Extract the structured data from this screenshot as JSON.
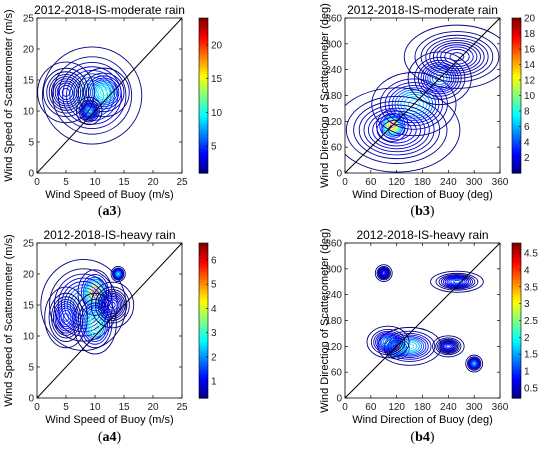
{
  "panels": [
    {
      "id": "a3",
      "caption": {
        "open": "(",
        "letter": "a3",
        "close": ")"
      },
      "chart_data": {
        "type": "heatmap",
        "title": "2012-2018-IS-moderate rain",
        "xlabel": "Wind Speed of Buoy (m/s)",
        "ylabel": "Wind Speed of Scatterometer (m/s)",
        "xlim": [
          0,
          25
        ],
        "ylim": [
          0,
          25
        ],
        "xticks": [
          0,
          5,
          10,
          15,
          20,
          25
        ],
        "yticks": [
          0,
          5,
          10,
          15,
          20,
          25
        ],
        "colorbar": {
          "min": 1,
          "max": 24,
          "ticks": [
            5,
            10,
            15,
            20
          ]
        },
        "reference_line": "y = x",
        "clusters": [
          {
            "x": 9.5,
            "y": 12.5,
            "sx": 3.5,
            "sy": 3.2,
            "amp": 10
          },
          {
            "x": 11.5,
            "y": 13,
            "sx": 1.8,
            "sy": 1.6,
            "amp": 11
          },
          {
            "x": 9,
            "y": 10,
            "sx": 0.9,
            "sy": 0.9,
            "amp": 8
          },
          {
            "x": 5,
            "y": 13,
            "sx": 2,
            "sy": 2,
            "amp": 3
          }
        ]
      }
    },
    {
      "id": "b3",
      "caption": {
        "open": "(",
        "letter": "b3",
        "close": ")"
      },
      "chart_data": {
        "type": "heatmap",
        "title": "2012-2018-IS-moderate rain",
        "xlabel": "Wind Direction of Buoy (deg)",
        "ylabel": "Wind Direction of Scatterometer (deg)",
        "xlim": [
          0,
          360
        ],
        "ylim": [
          0,
          360
        ],
        "xticks": [
          0,
          60,
          120,
          180,
          240,
          300,
          360
        ],
        "yticks": [
          0,
          60,
          120,
          180,
          240,
          300,
          360
        ],
        "colorbar": {
          "min": 0,
          "max": 20,
          "ticks": [
            2,
            4,
            6,
            8,
            10,
            12,
            14,
            16,
            18,
            20
          ]
        },
        "reference_line": "y = x",
        "clusters": [
          {
            "x": 110,
            "y": 110,
            "sx": 15,
            "sy": 15,
            "amp": 16
          },
          {
            "x": 160,
            "y": 160,
            "sx": 40,
            "sy": 30,
            "amp": 8
          },
          {
            "x": 220,
            "y": 220,
            "sx": 30,
            "sy": 25,
            "amp": 5
          },
          {
            "x": 120,
            "y": 100,
            "sx": 60,
            "sy": 40,
            "amp": 3
          },
          {
            "x": 260,
            "y": 270,
            "sx": 50,
            "sy": 30,
            "amp": 2
          }
        ]
      }
    },
    {
      "id": "a4",
      "caption": {
        "open": "(",
        "letter": "a4",
        "close": ")"
      },
      "chart_data": {
        "type": "heatmap",
        "title": "2012-2018-IS-heavy rain",
        "xlabel": "Wind Speed of Buoy (m/s)",
        "ylabel": "Wind Speed of Scatterometer (m/s)",
        "xlim": [
          0,
          25
        ],
        "ylim": [
          0,
          25
        ],
        "xticks": [
          0,
          5,
          10,
          15,
          20,
          25
        ],
        "yticks": [
          0,
          5,
          10,
          15,
          20,
          25
        ],
        "colorbar": {
          "min": 0.3,
          "max": 6.7,
          "ticks": [
            1,
            2,
            3,
            4,
            5,
            6
          ]
        },
        "reference_line": "y = x",
        "clusters": [
          {
            "x": 10,
            "y": 17,
            "sx": 1.2,
            "sy": 1.5,
            "amp": 5.5
          },
          {
            "x": 8,
            "y": 15,
            "sx": 3,
            "sy": 3,
            "amp": 2.5
          },
          {
            "x": 10,
            "y": 12,
            "sx": 1.5,
            "sy": 2,
            "amp": 3.5
          },
          {
            "x": 5,
            "y": 13,
            "sx": 1.5,
            "sy": 2,
            "amp": 1.5
          },
          {
            "x": 14,
            "y": 20,
            "sx": 0.5,
            "sy": 0.5,
            "amp": 2.5
          },
          {
            "x": 13,
            "y": 15,
            "sx": 1.5,
            "sy": 1.5,
            "amp": 1.2
          }
        ]
      }
    },
    {
      "id": "b4",
      "caption": {
        "open": "(",
        "letter": "b4",
        "close": ")"
      },
      "chart_data": {
        "type": "heatmap",
        "title": "2012-2018-IS-heavy rain",
        "xlabel": "Wind Direction of Buoy (deg)",
        "ylabel": "Wind Direction of Scatterometer (deg)",
        "xlim": [
          0,
          360
        ],
        "ylim": [
          0,
          360
        ],
        "xticks": [
          0,
          60,
          120,
          180,
          240,
          300,
          360
        ],
        "yticks": [
          0,
          60,
          120,
          180,
          240,
          300,
          360
        ],
        "colorbar": {
          "min": 0.2,
          "max": 4.8,
          "ticks": [
            0.5,
            1,
            1.5,
            2,
            2.5,
            3,
            3.5,
            4,
            4.5
          ]
        },
        "reference_line": "y = x",
        "clusters": [
          {
            "x": 120,
            "y": 115,
            "sx": 12,
            "sy": 10,
            "amp": 4.2
          },
          {
            "x": 150,
            "y": 120,
            "sx": 30,
            "sy": 18,
            "amp": 2
          },
          {
            "x": 100,
            "y": 130,
            "sx": 20,
            "sy": 15,
            "amp": 1.5
          },
          {
            "x": 260,
            "y": 270,
            "sx": 25,
            "sy": 10,
            "amp": 1.2
          },
          {
            "x": 300,
            "y": 80,
            "sx": 8,
            "sy": 8,
            "amp": 1.5
          },
          {
            "x": 90,
            "y": 290,
            "sx": 8,
            "sy": 8,
            "amp": 0.9
          },
          {
            "x": 240,
            "y": 120,
            "sx": 15,
            "sy": 10,
            "amp": 0.9
          }
        ]
      }
    }
  ]
}
